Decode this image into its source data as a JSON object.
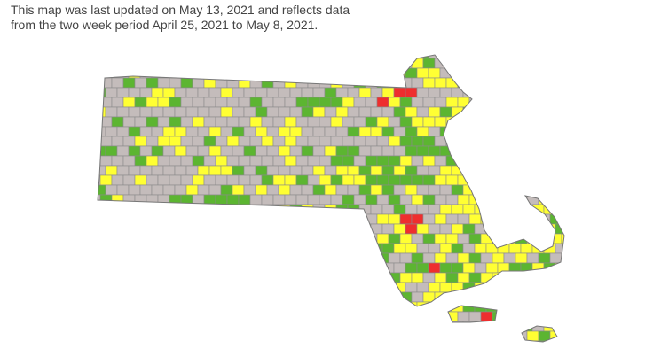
{
  "caption": {
    "line1": "This map was last updated on May 13, 2021 and reflects data",
    "line2": "from the two week period April 25, 2021 to May 8, 2021."
  }
}
